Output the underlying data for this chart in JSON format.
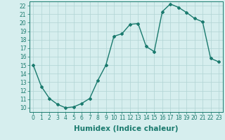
{
  "x": [
    0,
    1,
    2,
    3,
    4,
    5,
    6,
    7,
    8,
    9,
    10,
    11,
    12,
    13,
    14,
    15,
    16,
    17,
    18,
    19,
    20,
    21,
    22,
    23
  ],
  "y": [
    15,
    12.5,
    11.1,
    10.4,
    10.0,
    10.1,
    10.5,
    11.1,
    13.2,
    15.0,
    18.4,
    18.7,
    19.8,
    19.9,
    17.2,
    16.6,
    21.3,
    22.2,
    21.8,
    21.2,
    20.5,
    20.1,
    15.8,
    15.4
  ],
  "line_color": "#1a7a6e",
  "marker": "D",
  "marker_size": 2.0,
  "bg_color": "#d6eeee",
  "grid_color": "#b0d4d4",
  "xlabel": "Humidex (Indice chaleur)",
  "xlim": [
    -0.5,
    23.5
  ],
  "ylim": [
    9.5,
    22.5
  ],
  "yticks": [
    10,
    11,
    12,
    13,
    14,
    15,
    16,
    17,
    18,
    19,
    20,
    21,
    22
  ],
  "xticks": [
    0,
    1,
    2,
    3,
    4,
    5,
    6,
    7,
    8,
    9,
    10,
    11,
    12,
    13,
    14,
    15,
    16,
    17,
    18,
    19,
    20,
    21,
    22,
    23
  ],
  "tick_fontsize": 5.5,
  "xlabel_fontsize": 7.5,
  "line_width": 1.0
}
